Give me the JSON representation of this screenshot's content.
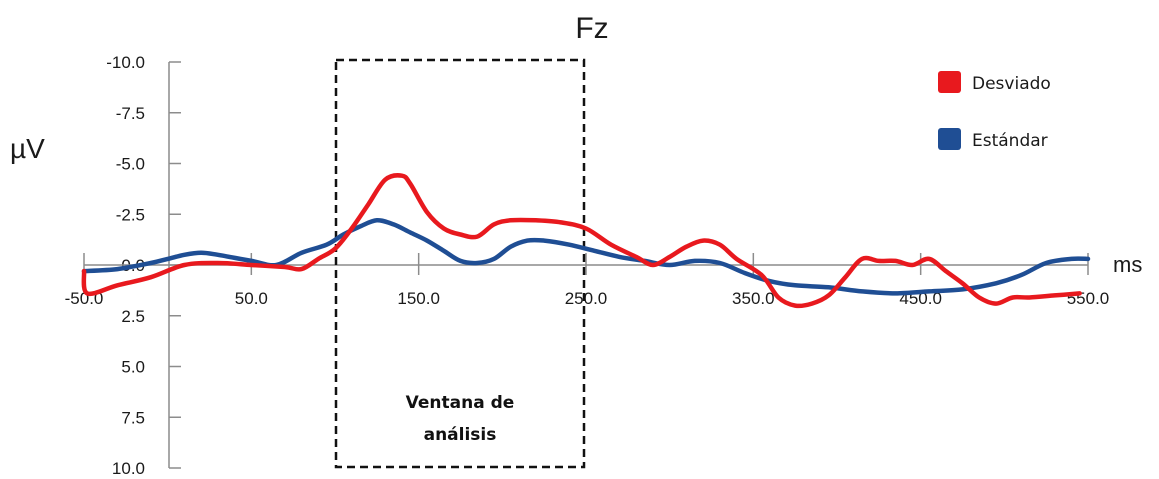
{
  "chart_data": {
    "type": "line",
    "title": "Fz",
    "ylabel": "µV",
    "xlabel": "ms",
    "xlim": [
      -50,
      550
    ],
    "ylim": [
      -10,
      10
    ],
    "y_inverted": true,
    "x_ticks": [
      "-50.0",
      "50.0",
      "150.0",
      "250.0",
      "350.0",
      "450.0",
      "550.0"
    ],
    "y_ticks": [
      "-10.0",
      "-7.5",
      "-5.0",
      "-2.5",
      "0.0",
      "2.5",
      "5.0",
      "7.5",
      "10.0"
    ],
    "legend_position": "top-right",
    "series": [
      {
        "name": "Desviado",
        "color": "#e8191e",
        "x": [
          -50,
          -48,
          -30,
          -10,
          10,
          30,
          50,
          70,
          80,
          90,
          100,
          110,
          120,
          130,
          140,
          145,
          155,
          165,
          175,
          185,
          195,
          205,
          220,
          235,
          250,
          265,
          280,
          290,
          300,
          310,
          320,
          330,
          340,
          355,
          365,
          375,
          385,
          395,
          405,
          415,
          425,
          435,
          445,
          455,
          465,
          475,
          485,
          495,
          505,
          515,
          530,
          545
        ],
        "values": [
          0.3,
          1.4,
          1.0,
          0.6,
          0.0,
          -0.1,
          0.0,
          0.1,
          0.2,
          -0.3,
          -0.8,
          -1.8,
          -3.0,
          -4.2,
          -4.4,
          -4.0,
          -2.6,
          -1.8,
          -1.5,
          -1.4,
          -2.0,
          -2.2,
          -2.2,
          -2.1,
          -1.8,
          -1.0,
          -0.4,
          0.0,
          -0.4,
          -0.9,
          -1.2,
          -1.0,
          -0.3,
          0.5,
          1.6,
          2.0,
          1.9,
          1.5,
          0.6,
          -0.3,
          -0.2,
          -0.2,
          0.0,
          -0.3,
          0.3,
          0.9,
          1.6,
          1.9,
          1.6,
          1.6,
          1.5,
          1.4
        ]
      },
      {
        "name": "Estándar",
        "color": "#1f4e94",
        "x": [
          -50,
          -30,
          -10,
          0,
          10,
          20,
          30,
          50,
          65,
          80,
          95,
          105,
          115,
          125,
          135,
          145,
          155,
          165,
          175,
          185,
          195,
          205,
          215,
          225,
          240,
          255,
          270,
          285,
          300,
          315,
          330,
          345,
          360,
          375,
          395,
          415,
          435,
          455,
          475,
          495,
          510,
          525,
          540,
          550
        ],
        "values": [
          0.3,
          0.2,
          -0.1,
          -0.3,
          -0.5,
          -0.6,
          -0.5,
          -0.2,
          0.0,
          -0.6,
          -1.0,
          -1.5,
          -1.9,
          -2.2,
          -2.0,
          -1.6,
          -1.2,
          -0.7,
          -0.2,
          -0.1,
          -0.3,
          -0.9,
          -1.2,
          -1.2,
          -1.0,
          -0.7,
          -0.4,
          -0.2,
          0.0,
          -0.2,
          -0.1,
          0.4,
          0.8,
          1.0,
          1.1,
          1.3,
          1.4,
          1.3,
          1.2,
          0.9,
          0.5,
          -0.1,
          -0.3,
          -0.3
        ]
      }
    ],
    "annotations": [
      {
        "type": "dashed-box",
        "x_range": [
          97,
          250
        ],
        "lines": [
          "Ventana de",
          "análisis"
        ]
      }
    ]
  }
}
